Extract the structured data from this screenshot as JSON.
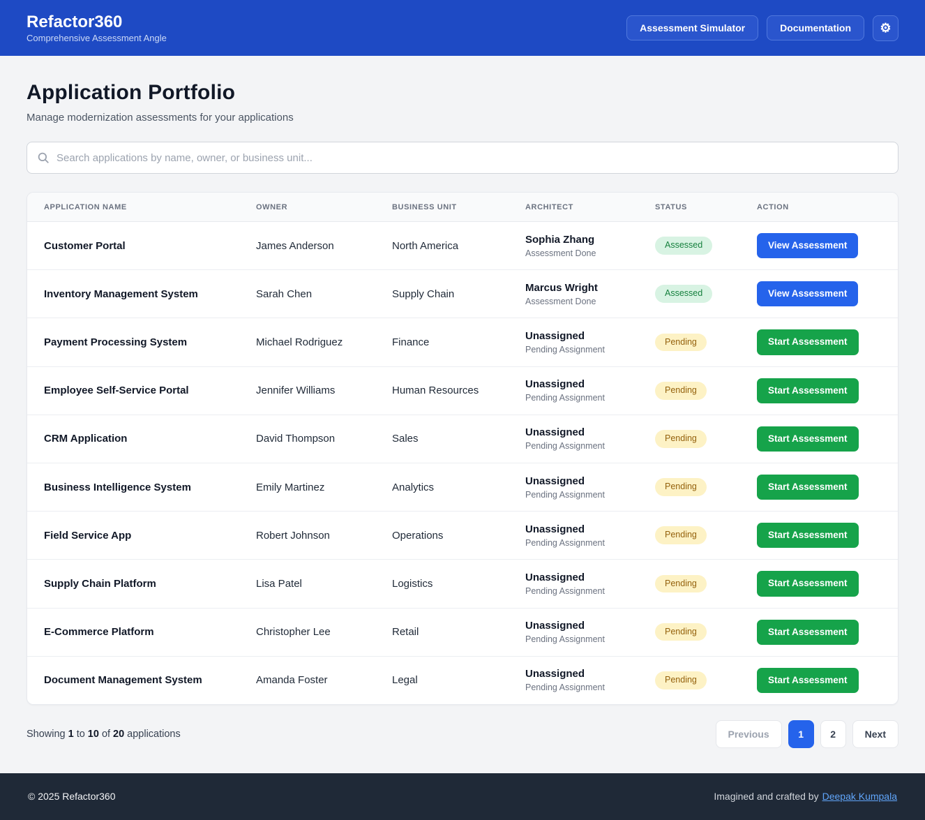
{
  "header": {
    "title": "Refactor360",
    "subtitle": "Comprehensive Assessment Angle",
    "nav_buttons": [
      {
        "label": "Assessment Simulator"
      },
      {
        "label": "Documentation"
      }
    ],
    "settings_icon": "gear-icon"
  },
  "page": {
    "title": "Application Portfolio",
    "subtitle": "Manage modernization assessments for your applications"
  },
  "search": {
    "icon": "search-icon",
    "placeholder": "Search applications by name, owner, or business unit..."
  },
  "table": {
    "columns": [
      "Application Name",
      "Owner",
      "Business Unit",
      "Architect",
      "Status",
      "Action"
    ],
    "rows": [
      {
        "application_name": "Customer Portal",
        "owner": "James Anderson",
        "business_unit": "North America",
        "architect": "Sophia Zhang",
        "architect_note": "Assessment Done",
        "status": "Assessed",
        "action": "View Assessment"
      },
      {
        "application_name": "Inventory Management System",
        "owner": "Sarah Chen",
        "business_unit": "Supply Chain",
        "architect": "Marcus Wright",
        "architect_note": "Assessment Done",
        "status": "Assessed",
        "action": "View Assessment"
      },
      {
        "application_name": "Payment Processing System",
        "owner": "Michael Rodriguez",
        "business_unit": "Finance",
        "architect": "Unassigned",
        "architect_note": "Pending Assignment",
        "status": "Pending",
        "action": "Start Assessment"
      },
      {
        "application_name": "Employee Self-Service Portal",
        "owner": "Jennifer Williams",
        "business_unit": "Human Resources",
        "architect": "Unassigned",
        "architect_note": "Pending Assignment",
        "status": "Pending",
        "action": "Start Assessment"
      },
      {
        "application_name": "CRM Application",
        "owner": "David Thompson",
        "business_unit": "Sales",
        "architect": "Unassigned",
        "architect_note": "Pending Assignment",
        "status": "Pending",
        "action": "Start Assessment"
      },
      {
        "application_name": "Business Intelligence System",
        "owner": "Emily Martinez",
        "business_unit": "Analytics",
        "architect": "Unassigned",
        "architect_note": "Pending Assignment",
        "status": "Pending",
        "action": "Start Assessment"
      },
      {
        "application_name": "Field Service App",
        "owner": "Robert Johnson",
        "business_unit": "Operations",
        "architect": "Unassigned",
        "architect_note": "Pending Assignment",
        "status": "Pending",
        "action": "Start Assessment"
      },
      {
        "application_name": "Supply Chain Platform",
        "owner": "Lisa Patel",
        "business_unit": "Logistics",
        "architect": "Unassigned",
        "architect_note": "Pending Assignment",
        "status": "Pending",
        "action": "Start Assessment"
      },
      {
        "application_name": "E-Commerce Platform",
        "owner": "Christopher Lee",
        "business_unit": "Retail",
        "architect": "Unassigned",
        "architect_note": "Pending Assignment",
        "status": "Pending",
        "action": "Start Assessment"
      },
      {
        "application_name": "Document Management System",
        "owner": "Amanda Foster",
        "business_unit": "Legal",
        "architect": "Unassigned",
        "architect_note": "Pending Assignment",
        "status": "Pending",
        "action": "Start Assessment"
      }
    ]
  },
  "status_styles": {
    "Assessed": {
      "bg": "#d8f3e3",
      "text": "#15803d"
    },
    "Pending": {
      "bg": "#fdf2c5",
      "text": "#94610c"
    }
  },
  "action_styles": {
    "View Assessment": {
      "bg": "#2563eb"
    },
    "Start Assessment": {
      "bg": "#16a34a"
    }
  },
  "pagination": {
    "showing_label": "Showing",
    "from": "1",
    "to_label": "to",
    "to": "10",
    "of_label": "of",
    "of": "20",
    "items_label": "applications",
    "previous_label": "Previous",
    "pages": [
      "1",
      "2"
    ],
    "active_page": "1",
    "next_label": "Next"
  },
  "footer": {
    "copyright": "© 2025 Refactor360",
    "credit_prefix": "Imagined and crafted by",
    "credit_link": "Deepak Kumpala"
  },
  "colors": {
    "header_bg": "#1e4ac4",
    "accent_blue": "#2563eb",
    "accent_green": "#16a34a",
    "footer_bg": "#1f2937",
    "page_bg": "#f3f4f6"
  }
}
